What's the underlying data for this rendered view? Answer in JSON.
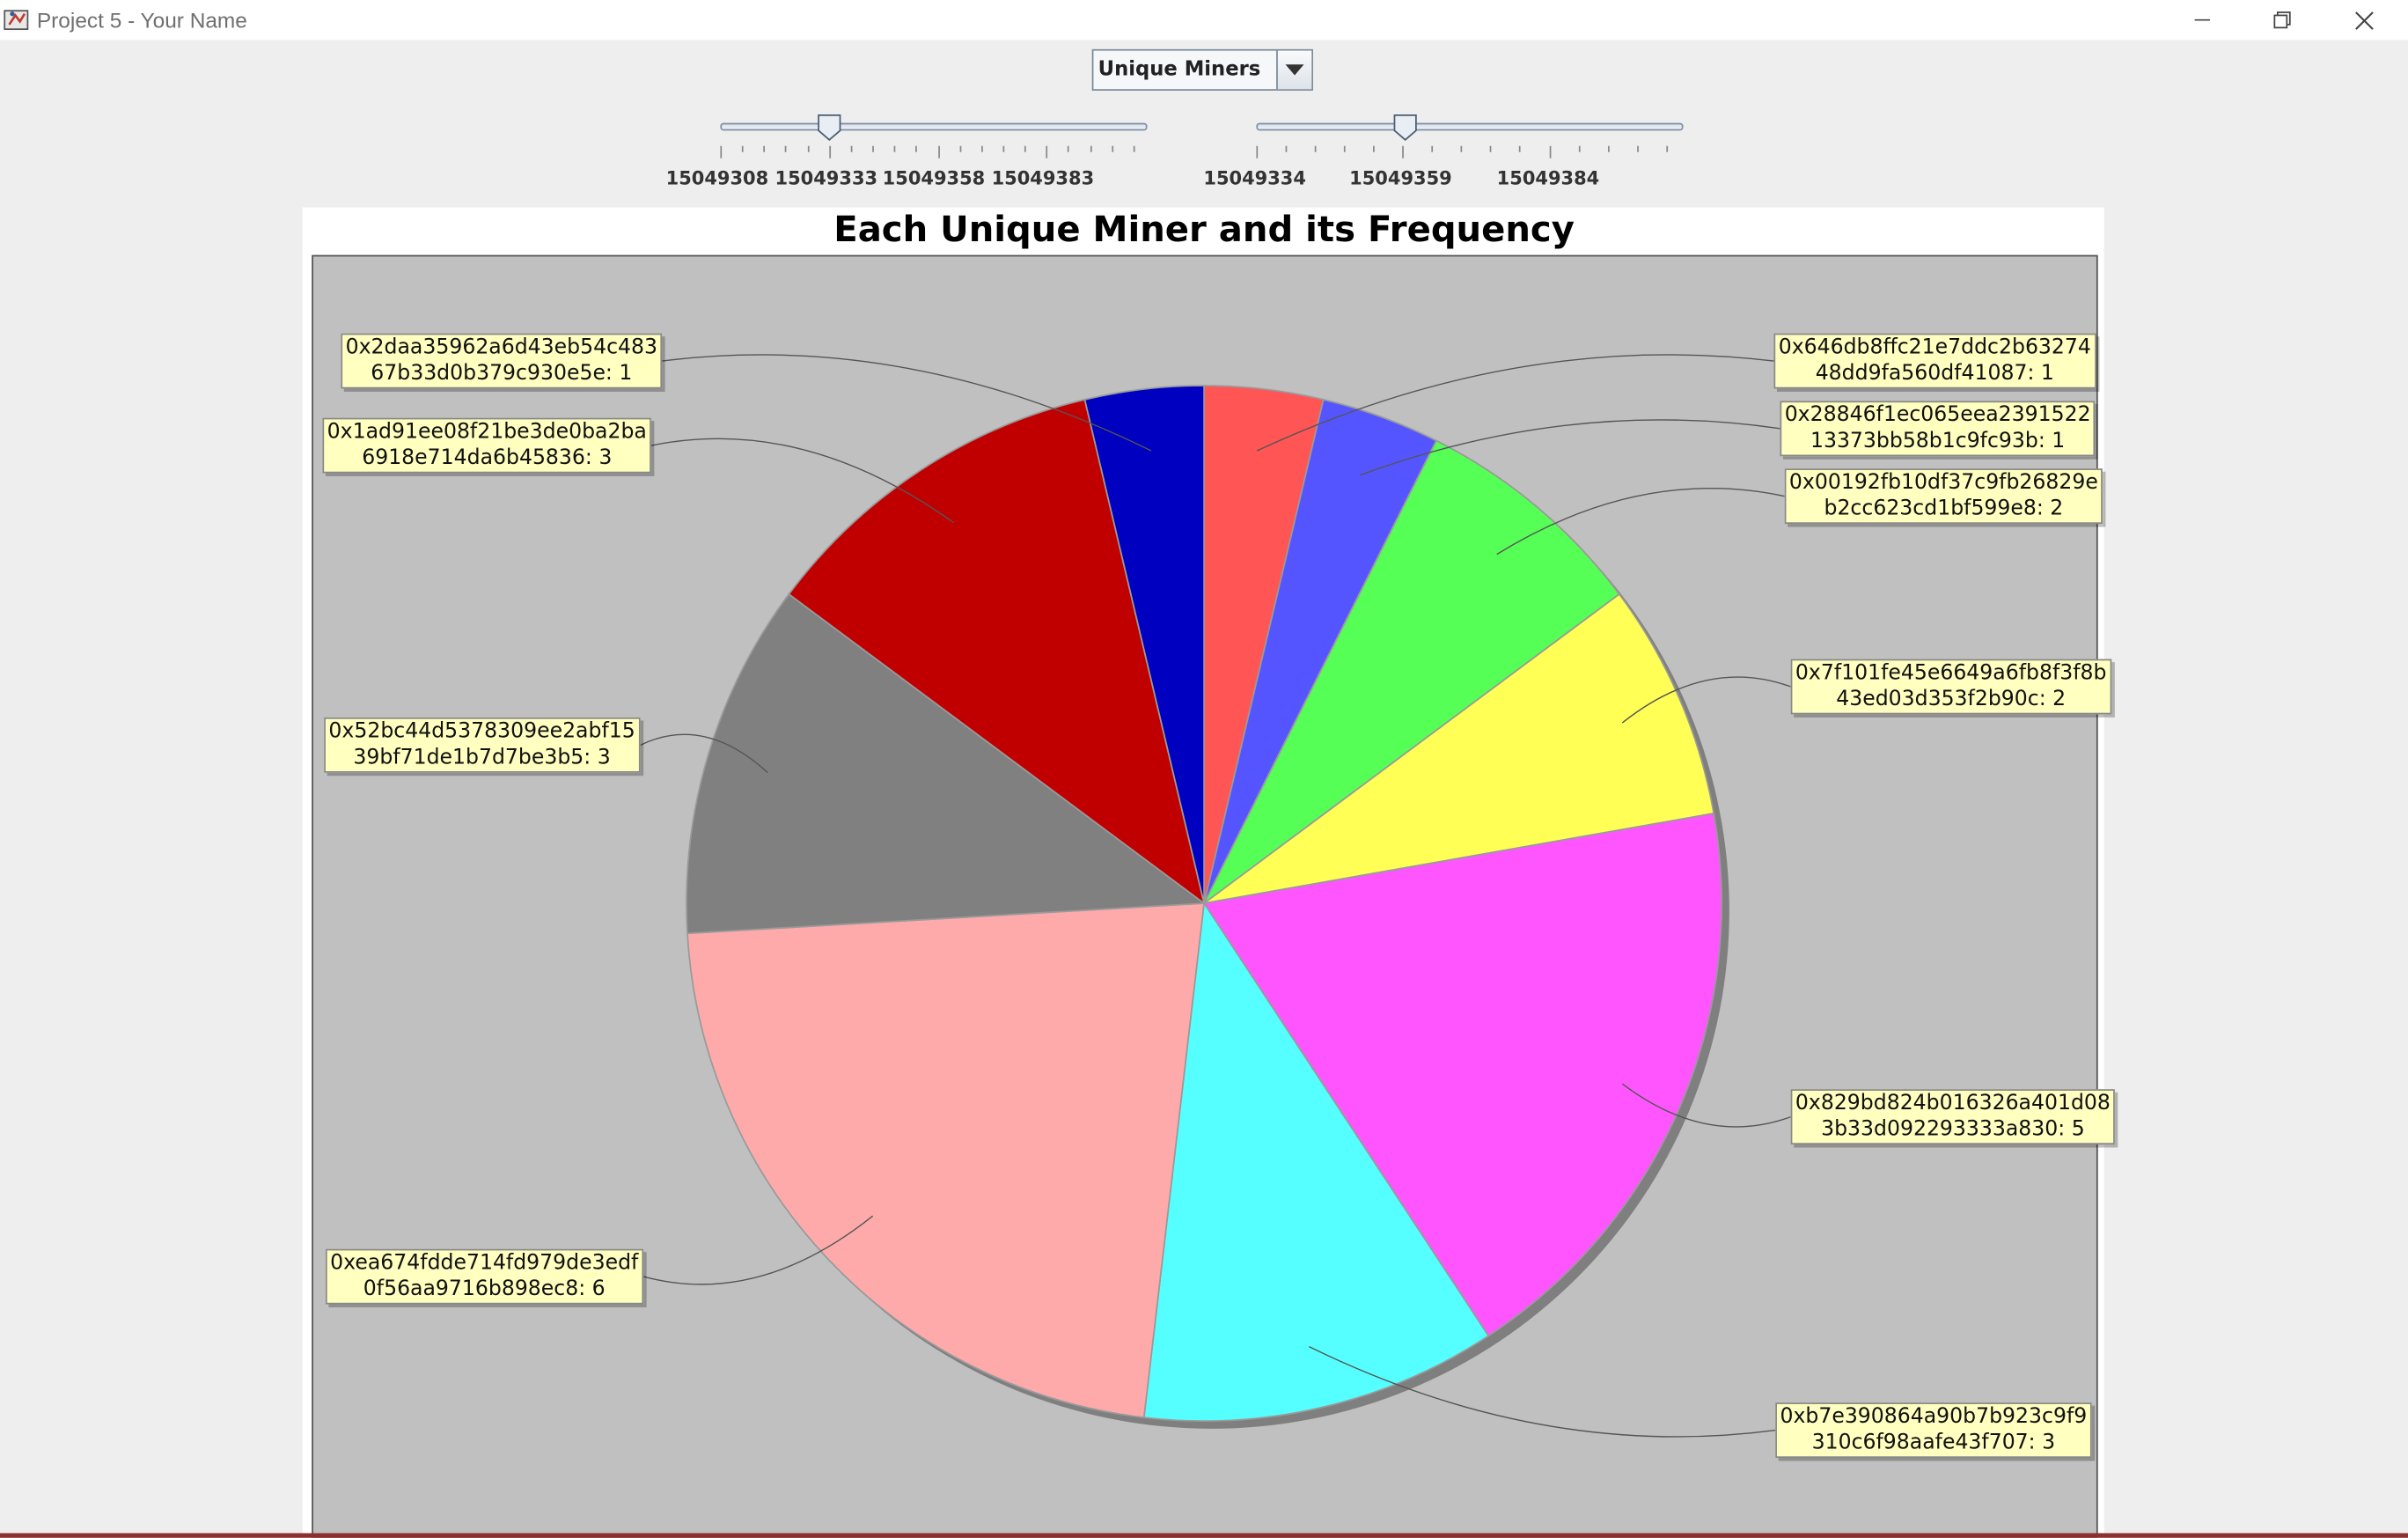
{
  "window": {
    "title": "Project 5 - Your Name",
    "minimize_icon": "minimize-icon",
    "restore_icon": "restore-icon",
    "close_icon": "close-icon"
  },
  "controls": {
    "combo": {
      "selected": "Unique Miners",
      "arrow_icon": "chevron-down-icon"
    },
    "slider_start": {
      "tick_labels": [
        "15049308",
        "15049333",
        "15049358",
        "15049383"
      ],
      "value": 15049333
    },
    "slider_end": {
      "tick_labels": [
        "15049334",
        "15049359",
        "15049384"
      ],
      "value": 15049359
    }
  },
  "chart_data": {
    "type": "pie",
    "title": "Each Unique Miner and its Frequency",
    "slices": [
      {
        "label": "0x646db8ffc21e7ddc2b63274\n48dd9fa560df41087: 1",
        "value": 1,
        "color": "#ff5555"
      },
      {
        "label": "0x28846f1ec065eea2391522\n13373bb58b1c9fc93b: 1",
        "value": 1,
        "color": "#5555ff"
      },
      {
        "label": "0x00192fb10df37c9fb26829e\nb2cc623cd1bf599e8: 2",
        "value": 2,
        "color": "#55ff55"
      },
      {
        "label": "0x7f101fe45e6649a6fb8f3f8b\n43ed03d353f2b90c: 2",
        "value": 2,
        "color": "#ffff55"
      },
      {
        "label": "0x829bd824b016326a401d08\n3b33d092293333a830: 5",
        "value": 5,
        "color": "#ff55ff"
      },
      {
        "label": "0xb7e390864a90b7b923c9f9\n310c6f98aafe43f707: 3",
        "value": 3,
        "color": "#55ffff"
      },
      {
        "label": "0xea674fdde714fd979de3edf\n0f56aa9716b898ec8: 6",
        "value": 6,
        "color": "#ffaaaa"
      },
      {
        "label": "0x52bc44d5378309ee2abf15\n39bf71de1b7d7be3b5: 3",
        "value": 3,
        "color": "#808080"
      },
      {
        "label": "0x1ad91ee08f21be3de0ba2ba\n6918e714da6b45836: 3",
        "value": 3,
        "color": "#c00000"
      },
      {
        "label": "0x2daa35962a6d43eb54c483\n67b33d0b379c930e5e: 1",
        "value": 1,
        "color": "#0000c0"
      }
    ],
    "background": "#c0c0c0",
    "label_background": "#ffffc0"
  }
}
